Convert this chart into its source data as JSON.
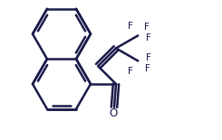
{
  "bg_color": "#ffffff",
  "bond_color": "#1a1a4a",
  "text_color": "#1a1a4a",
  "line_width": 1.8,
  "figsize": [
    2.45,
    1.55
  ],
  "dpi": 100,
  "xlim": [
    0,
    245
  ],
  "ylim": [
    0,
    155
  ]
}
